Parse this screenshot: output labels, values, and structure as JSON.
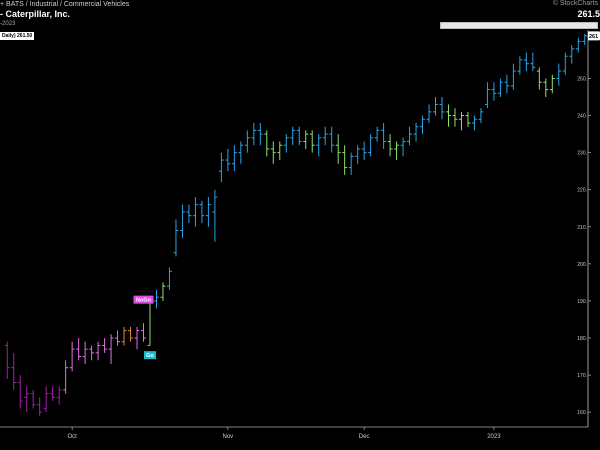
{
  "header": {
    "line1": "+ BATS / Industrial / Commercial Vehicles",
    "line2": "- Caterpillar, Inc.",
    "line3": "-2023",
    "watermark": "© StockCharts",
    "last_price": "261.5",
    "daily_tag": "Daily) 261.50"
  },
  "chart_data": {
    "type": "bar",
    "title": "Caterpillar, Inc.",
    "ylim": [
      156,
      262
    ],
    "y_ticks": [
      160,
      170,
      180,
      190,
      200,
      210,
      220,
      230,
      240,
      250
    ],
    "y_tick_labels": [
      "160.",
      "170.",
      "180.",
      "190.",
      "200.",
      "210.",
      "220.",
      "230.",
      "240.",
      "250."
    ],
    "last_price_label": "261",
    "x_ticks": [
      {
        "label": "Oct",
        "index": 10
      },
      {
        "label": "Nov",
        "index": 34
      },
      {
        "label": "Dec",
        "index": 55
      },
      {
        "label": "2023",
        "index": 75
      }
    ],
    "colors": {
      "purple": "#a020a8",
      "pink": "#e070e8",
      "orange": "#e08a2a",
      "green": "#8ee26a",
      "blue": "#2aa3e6"
    },
    "annotations": [
      {
        "text": "NoGo",
        "index": 21,
        "value": 189,
        "position": "above",
        "color": "#e24ae8"
      },
      {
        "text": "Go",
        "index": 22,
        "value": 177,
        "position": "below",
        "color": "#20b8c8"
      }
    ],
    "bars": [
      {
        "o": 178,
        "h": 179,
        "l": 169,
        "c": 172,
        "t": "purple"
      },
      {
        "o": 172,
        "h": 176,
        "l": 166,
        "c": 168,
        "t": "purple"
      },
      {
        "o": 168,
        "h": 170,
        "l": 161,
        "c": 163,
        "t": "purple"
      },
      {
        "o": 164,
        "h": 167,
        "l": 160,
        "c": 165,
        "t": "purple"
      },
      {
        "o": 165,
        "h": 166,
        "l": 161,
        "c": 162,
        "t": "purple"
      },
      {
        "o": 162,
        "h": 164,
        "l": 159,
        "c": 160,
        "t": "purple"
      },
      {
        "o": 161,
        "h": 167,
        "l": 160,
        "c": 165,
        "t": "purple"
      },
      {
        "o": 165,
        "h": 167,
        "l": 163,
        "c": 164,
        "t": "purple"
      },
      {
        "o": 164,
        "h": 167,
        "l": 162,
        "c": 166,
        "t": "purple"
      },
      {
        "o": 166,
        "h": 174,
        "l": 165,
        "c": 172,
        "t": "pink"
      },
      {
        "o": 172,
        "h": 179,
        "l": 171,
        "c": 177,
        "t": "pink"
      },
      {
        "o": 177,
        "h": 180,
        "l": 174,
        "c": 175,
        "t": "pink"
      },
      {
        "o": 175,
        "h": 179,
        "l": 173,
        "c": 177,
        "t": "pink"
      },
      {
        "o": 177,
        "h": 178,
        "l": 174,
        "c": 176,
        "t": "pink"
      },
      {
        "o": 176,
        "h": 179,
        "l": 174,
        "c": 178,
        "t": "pink"
      },
      {
        "o": 178,
        "h": 180,
        "l": 176,
        "c": 177,
        "t": "pink"
      },
      {
        "o": 177,
        "h": 181,
        "l": 173,
        "c": 180,
        "t": "pink"
      },
      {
        "o": 180,
        "h": 182,
        "l": 178,
        "c": 179,
        "t": "pink"
      },
      {
        "o": 179,
        "h": 183,
        "l": 178,
        "c": 182,
        "t": "orange"
      },
      {
        "o": 182,
        "h": 183,
        "l": 179,
        "c": 180,
        "t": "orange"
      },
      {
        "o": 180,
        "h": 183,
        "l": 177,
        "c": 182,
        "t": "pink"
      },
      {
        "o": 182,
        "h": 184,
        "l": 179,
        "c": 180,
        "t": "pink"
      },
      {
        "o": 178,
        "h": 191,
        "l": 178,
        "c": 190,
        "t": "green"
      },
      {
        "o": 190,
        "h": 193,
        "l": 188,
        "c": 191,
        "t": "blue"
      },
      {
        "o": 191,
        "h": 195,
        "l": 190,
        "c": 194,
        "t": "green"
      },
      {
        "o": 194,
        "h": 199,
        "l": 193,
        "c": 198,
        "t": "blue"
      },
      {
        "o": 203,
        "h": 212,
        "l": 202,
        "c": 209,
        "t": "blue"
      },
      {
        "o": 209,
        "h": 216,
        "l": 207,
        "c": 214,
        "t": "blue"
      },
      {
        "o": 214,
        "h": 216,
        "l": 211,
        "c": 213,
        "t": "blue"
      },
      {
        "o": 213,
        "h": 218,
        "l": 210,
        "c": 216,
        "t": "blue"
      },
      {
        "o": 216,
        "h": 217,
        "l": 211,
        "c": 213,
        "t": "blue"
      },
      {
        "o": 213,
        "h": 218,
        "l": 210,
        "c": 216,
        "t": "blue"
      },
      {
        "o": 214,
        "h": 220,
        "l": 206,
        "c": 218,
        "t": "blue"
      },
      {
        "o": 225,
        "h": 230,
        "l": 222,
        "c": 228,
        "t": "blue"
      },
      {
        "o": 228,
        "h": 231,
        "l": 225,
        "c": 227,
        "t": "blue"
      },
      {
        "o": 227,
        "h": 232,
        "l": 225,
        "c": 230,
        "t": "blue"
      },
      {
        "o": 230,
        "h": 233,
        "l": 227,
        "c": 232,
        "t": "blue"
      },
      {
        "o": 232,
        "h": 236,
        "l": 230,
        "c": 234,
        "t": "blue"
      },
      {
        "o": 234,
        "h": 238,
        "l": 232,
        "c": 236,
        "t": "blue"
      },
      {
        "o": 236,
        "h": 238,
        "l": 232,
        "c": 235,
        "t": "blue"
      },
      {
        "o": 235,
        "h": 236,
        "l": 229,
        "c": 231,
        "t": "green"
      },
      {
        "o": 231,
        "h": 233,
        "l": 227,
        "c": 230,
        "t": "green"
      },
      {
        "o": 230,
        "h": 233,
        "l": 228,
        "c": 232,
        "t": "green"
      },
      {
        "o": 232,
        "h": 235,
        "l": 230,
        "c": 234,
        "t": "blue"
      },
      {
        "o": 234,
        "h": 237,
        "l": 232,
        "c": 236,
        "t": "blue"
      },
      {
        "o": 236,
        "h": 237,
        "l": 232,
        "c": 233,
        "t": "blue"
      },
      {
        "o": 233,
        "h": 236,
        "l": 231,
        "c": 235,
        "t": "green"
      },
      {
        "o": 235,
        "h": 236,
        "l": 230,
        "c": 232,
        "t": "green"
      },
      {
        "o": 232,
        "h": 235,
        "l": 229,
        "c": 234,
        "t": "blue"
      },
      {
        "o": 234,
        "h": 237,
        "l": 232,
        "c": 235,
        "t": "blue"
      },
      {
        "o": 235,
        "h": 237,
        "l": 230,
        "c": 232,
        "t": "blue"
      },
      {
        "o": 232,
        "h": 235,
        "l": 227,
        "c": 230,
        "t": "green"
      },
      {
        "o": 230,
        "h": 232,
        "l": 224,
        "c": 226,
        "t": "green"
      },
      {
        "o": 226,
        "h": 230,
        "l": 224,
        "c": 229,
        "t": "blue"
      },
      {
        "o": 229,
        "h": 232,
        "l": 227,
        "c": 231,
        "t": "blue"
      },
      {
        "o": 231,
        "h": 233,
        "l": 228,
        "c": 230,
        "t": "blue"
      },
      {
        "o": 230,
        "h": 235,
        "l": 229,
        "c": 234,
        "t": "blue"
      },
      {
        "o": 234,
        "h": 237,
        "l": 233,
        "c": 236,
        "t": "blue"
      },
      {
        "o": 236,
        "h": 238,
        "l": 231,
        "c": 233,
        "t": "blue"
      },
      {
        "o": 233,
        "h": 235,
        "l": 229,
        "c": 231,
        "t": "green"
      },
      {
        "o": 231,
        "h": 233,
        "l": 228,
        "c": 232,
        "t": "green"
      },
      {
        "o": 232,
        "h": 234,
        "l": 229,
        "c": 233,
        "t": "blue"
      },
      {
        "o": 233,
        "h": 237,
        "l": 232,
        "c": 235,
        "t": "blue"
      },
      {
        "o": 235,
        "h": 238,
        "l": 233,
        "c": 237,
        "t": "blue"
      },
      {
        "o": 237,
        "h": 240,
        "l": 235,
        "c": 239,
        "t": "blue"
      },
      {
        "o": 239,
        "h": 243,
        "l": 238,
        "c": 241,
        "t": "blue"
      },
      {
        "o": 241,
        "h": 245,
        "l": 240,
        "c": 243,
        "t": "blue"
      },
      {
        "o": 243,
        "h": 245,
        "l": 239,
        "c": 241,
        "t": "blue"
      },
      {
        "o": 241,
        "h": 243,
        "l": 237,
        "c": 240,
        "t": "green"
      },
      {
        "o": 240,
        "h": 242,
        "l": 237,
        "c": 239,
        "t": "green"
      },
      {
        "o": 239,
        "h": 241,
        "l": 236,
        "c": 240,
        "t": "green"
      },
      {
        "o": 240,
        "h": 241,
        "l": 237,
        "c": 238,
        "t": "green"
      },
      {
        "o": 238,
        "h": 240,
        "l": 236,
        "c": 239,
        "t": "blue"
      },
      {
        "o": 239,
        "h": 242,
        "l": 238,
        "c": 241,
        "t": "blue"
      },
      {
        "o": 243,
        "h": 249,
        "l": 242,
        "c": 247,
        "t": "blue"
      },
      {
        "o": 247,
        "h": 249,
        "l": 244,
        "c": 246,
        "t": "blue"
      },
      {
        "o": 246,
        "h": 250,
        "l": 245,
        "c": 249,
        "t": "blue"
      },
      {
        "o": 249,
        "h": 251,
        "l": 246,
        "c": 248,
        "t": "blue"
      },
      {
        "o": 248,
        "h": 254,
        "l": 247,
        "c": 252,
        "t": "blue"
      },
      {
        "o": 252,
        "h": 256,
        "l": 251,
        "c": 255,
        "t": "blue"
      },
      {
        "o": 255,
        "h": 257,
        "l": 252,
        "c": 254,
        "t": "blue"
      },
      {
        "o": 254,
        "h": 257,
        "l": 252,
        "c": 253,
        "t": "blue"
      },
      {
        "o": 252,
        "h": 253,
        "l": 247,
        "c": 249,
        "t": "green"
      },
      {
        "o": 249,
        "h": 250,
        "l": 245,
        "c": 247,
        "t": "green"
      },
      {
        "o": 247,
        "h": 251,
        "l": 246,
        "c": 250,
        "t": "green"
      },
      {
        "o": 250,
        "h": 254,
        "l": 248,
        "c": 252,
        "t": "blue"
      },
      {
        "o": 252,
        "h": 257,
        "l": 251,
        "c": 256,
        "t": "blue"
      },
      {
        "o": 256,
        "h": 259,
        "l": 254,
        "c": 258,
        "t": "blue"
      },
      {
        "o": 258,
        "h": 261,
        "l": 257,
        "c": 260,
        "t": "blue"
      },
      {
        "o": 260,
        "h": 262,
        "l": 259,
        "c": 261.5,
        "t": "blue"
      }
    ]
  }
}
